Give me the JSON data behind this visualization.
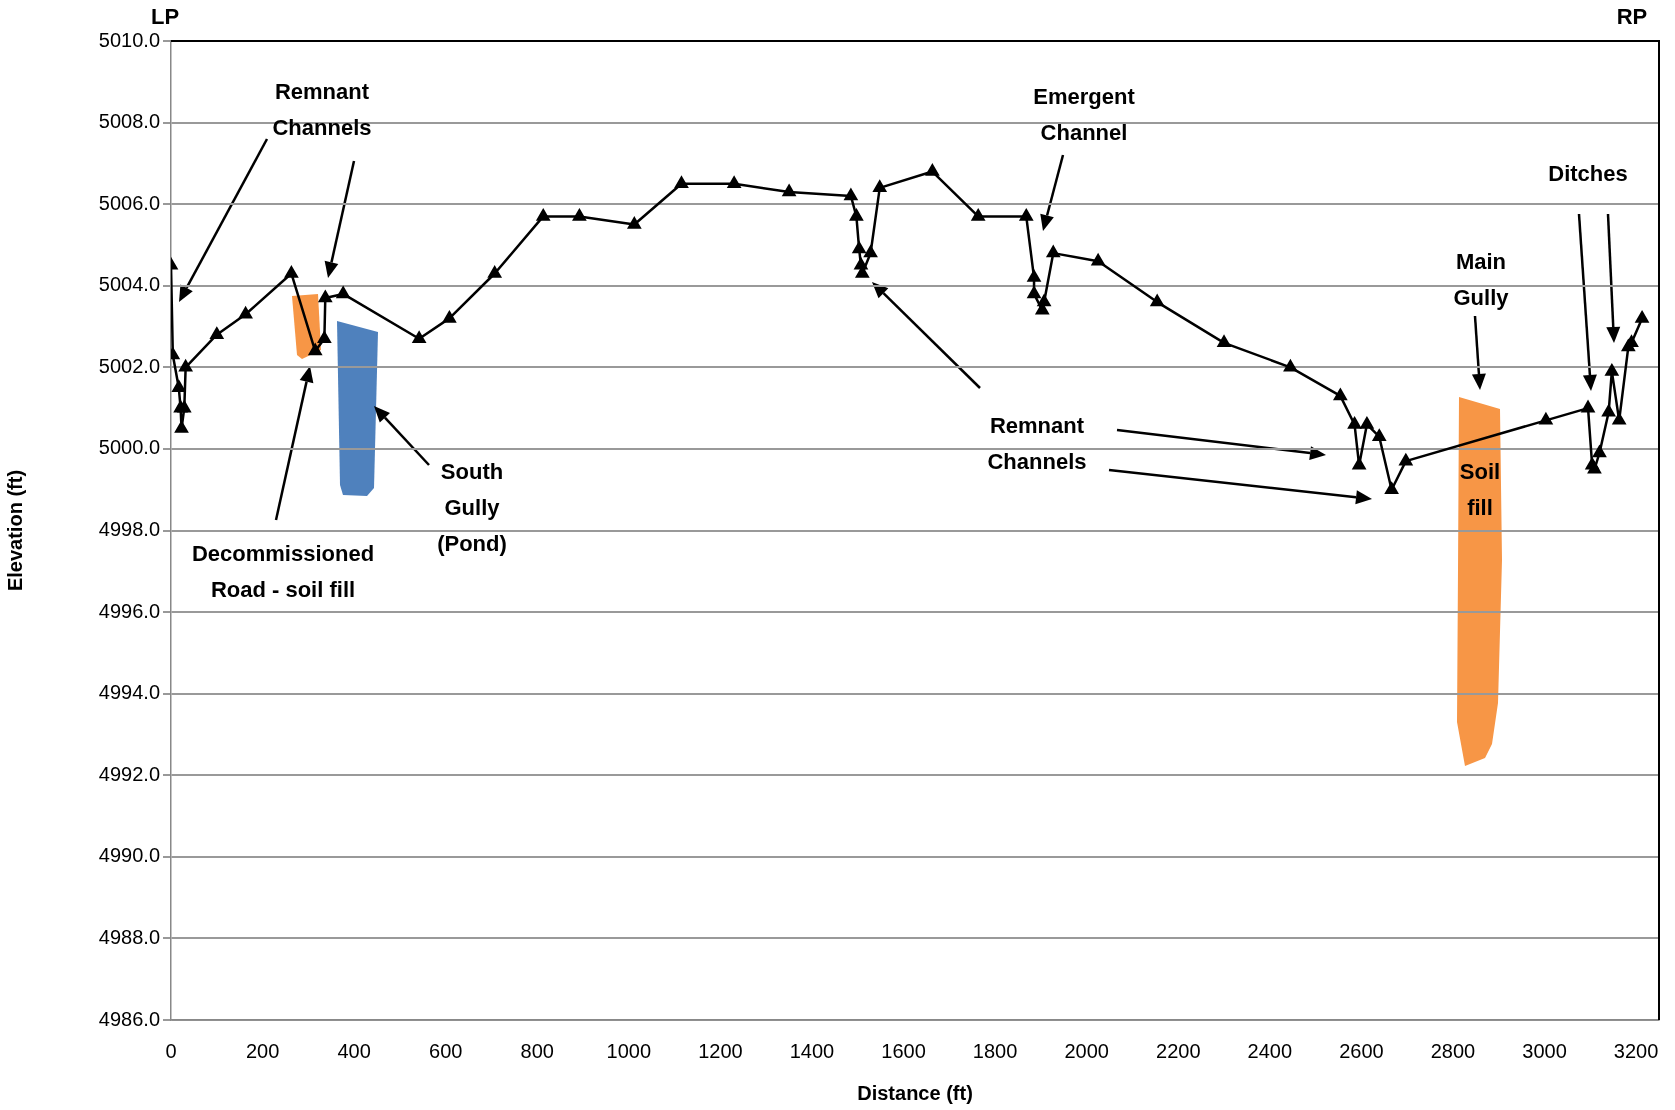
{
  "chart_data": {
    "type": "line",
    "xlabel": "Distance (ft)",
    "ylabel": "Elevation (ft)",
    "annotations": [
      "LP",
      "RP",
      "Remnant\nChannels",
      "Decommissioned\nRoad - soil fill",
      "South\nGully\n(Pond)",
      "Emergent\nChannel",
      "Remnant\nChannels",
      "Main\nGully",
      "Ditches",
      "Soil\nfill"
    ],
    "x": [
      0,
      4,
      17,
      21,
      23,
      29,
      32,
      100,
      163,
      263,
      315,
      335,
      337,
      376,
      542,
      608,
      707,
      813,
      892,
      1012,
      1115,
      1230,
      1350,
      1485,
      1497,
      1503,
      1507,
      1510,
      1528,
      1548,
      1663,
      1763,
      1868,
      1885,
      1885,
      1903,
      1907,
      1927,
      2025,
      2154,
      2300,
      2445,
      2554,
      2585,
      2595,
      2612,
      2639,
      2666,
      2697,
      3003,
      3095,
      3104,
      3109,
      3120,
      3140,
      3147,
      3163,
      3183,
      3190,
      3213
    ],
    "values": [
      5004.5,
      5002.3,
      5001.5,
      5001.0,
      5000.5,
      5001.0,
      5002.0,
      5002.8,
      5003.3,
      5004.3,
      5002.4,
      5002.7,
      5003.7,
      5003.8,
      5002.7,
      5003.2,
      5004.3,
      5005.7,
      5005.7,
      5005.5,
      5006.5,
      5006.5,
      5006.3,
      5006.2,
      5005.7,
      5004.9,
      5004.5,
      5004.3,
      5004.8,
      5006.4,
      5006.8,
      5005.7,
      5005.7,
      5004.2,
      5003.8,
      5003.4,
      5003.6,
      5004.8,
      5004.6,
      5003.6,
      5002.6,
      5002.0,
      5001.3,
      5000.6,
      4999.6,
      5000.6,
      5000.3,
      4999.0,
      4999.7,
      5000.7,
      5001.0,
      4999.6,
      4999.5,
      4999.9,
      5000.9,
      5001.9,
      5000.7,
      5002.5,
      5002.6,
      5003.2
    ],
    "color": "#000000",
    "xlim": [
      0,
      3250
    ],
    "ylim": [
      4986,
      5010
    ],
    "xticks": [
      0,
      200,
      400,
      600,
      800,
      1000,
      1200,
      1400,
      1600,
      1800,
      2000,
      2200,
      2400,
      2600,
      2800,
      3000,
      3200
    ],
    "yticks": [
      {
        "value": 4986,
        "label": "4986.0"
      },
      {
        "value": 4988,
        "label": "4988.0"
      },
      {
        "value": 4990,
        "label": "4990.0"
      },
      {
        "value": 4992,
        "label": "4992.0"
      },
      {
        "value": 4994,
        "label": "4994.0"
      },
      {
        "value": 4996,
        "label": "4996.0"
      },
      {
        "value": 4998,
        "label": "4998.0"
      },
      {
        "value": 5000,
        "label": "5000.0"
      },
      {
        "value": 5002,
        "label": "5002.0"
      },
      {
        "value": 5004,
        "label": "5004.0"
      },
      {
        "value": 5006,
        "label": "5006.0"
      },
      {
        "value": 5008,
        "label": "5008.0"
      },
      {
        "value": 5010,
        "label": "5010.0"
      }
    ],
    "grid": "y",
    "marker": "triangle"
  }
}
